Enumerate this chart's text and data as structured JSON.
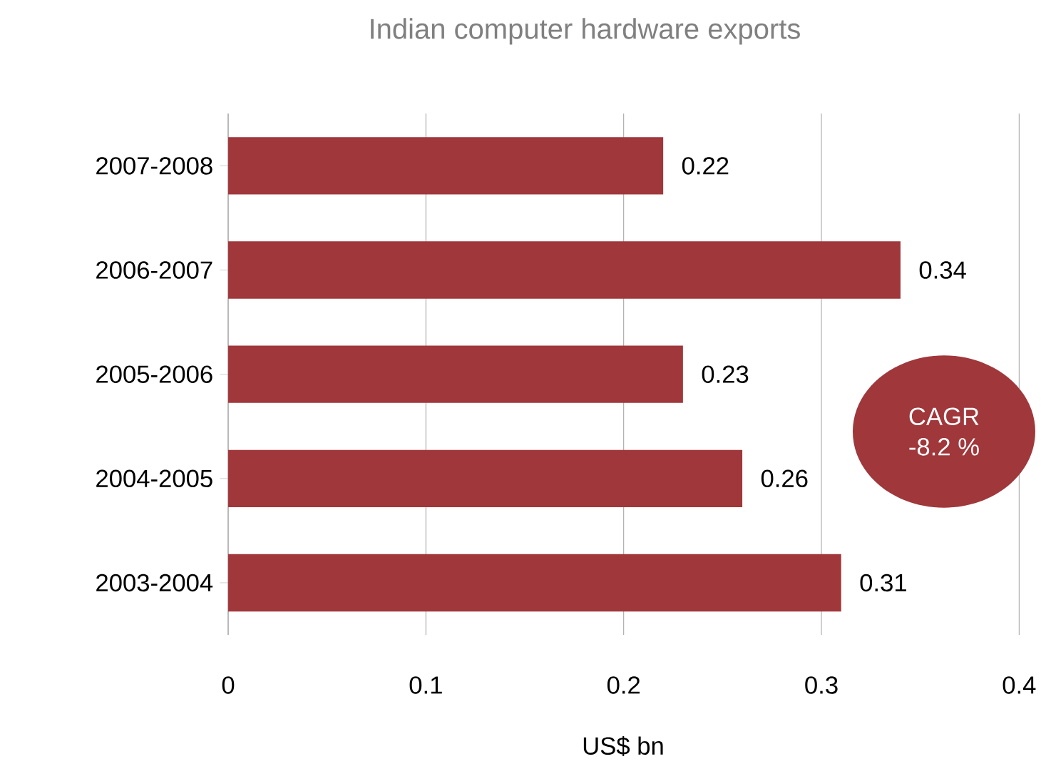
{
  "chart_data": {
    "type": "bar",
    "orientation": "horizontal",
    "title": "Indian computer hardware exports",
    "xlabel": "US$ bn",
    "categories": [
      "2007-2008",
      "2006-2007",
      "2005-2006",
      "2004-2005",
      "2003-2004"
    ],
    "values": [
      0.22,
      0.34,
      0.23,
      0.26,
      0.31
    ],
    "color": "#a0373b",
    "xlim": [
      0,
      0.4
    ],
    "xticks": [
      0,
      0.1,
      0.2,
      0.3,
      0.4
    ],
    "grid": "x",
    "data_labels": true,
    "annotations": [
      "CAGR",
      "-8.2 %"
    ]
  }
}
